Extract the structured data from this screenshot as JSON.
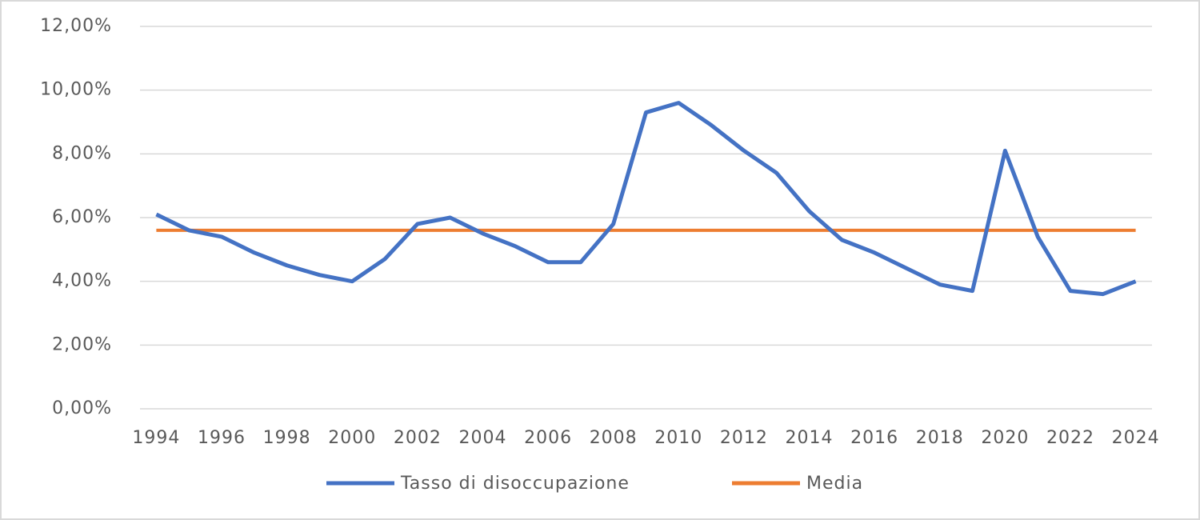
{
  "chart_data": {
    "type": "line",
    "categories": [
      "1994",
      null,
      "1996",
      null,
      "1998",
      null,
      "2000",
      null,
      "2002",
      null,
      "2004",
      null,
      "2006",
      null,
      "2008",
      null,
      "2010",
      null,
      "2012",
      null,
      "2014",
      null,
      "2016",
      null,
      "2018",
      null,
      "2020",
      null,
      "2022",
      null,
      "2024"
    ],
    "series": [
      {
        "name": "Tasso di disoccupazione",
        "color": "#4472c4",
        "values": [
          6.1,
          5.6,
          5.4,
          4.9,
          4.5,
          4.2,
          4.0,
          4.7,
          5.8,
          6.0,
          5.5,
          5.1,
          4.6,
          4.6,
          5.8,
          9.3,
          9.6,
          8.9,
          8.1,
          7.4,
          6.2,
          5.3,
          4.9,
          4.4,
          3.9,
          3.7,
          8.1,
          5.4,
          3.7,
          3.6,
          4.0
        ]
      },
      {
        "name": "Media",
        "color": "#ed7d31",
        "values": [
          5.6,
          5.6,
          5.6,
          5.6,
          5.6,
          5.6,
          5.6,
          5.6,
          5.6,
          5.6,
          5.6,
          5.6,
          5.6,
          5.6,
          5.6,
          5.6,
          5.6,
          5.6,
          5.6,
          5.6,
          5.6,
          5.6,
          5.6,
          5.6,
          5.6,
          5.6,
          5.6,
          5.6,
          5.6,
          5.6,
          5.6
        ]
      }
    ],
    "ylim": [
      0,
      12
    ],
    "yticks": [
      {
        "value": 0,
        "label": "0,00%"
      },
      {
        "value": 2,
        "label": "2,00%"
      },
      {
        "value": 4,
        "label": "4,00%"
      },
      {
        "value": 6,
        "label": "6,00%"
      },
      {
        "value": 8,
        "label": "8,00%"
      },
      {
        "value": 10,
        "label": "10,00%"
      },
      {
        "value": 12,
        "label": "12,00%"
      }
    ],
    "grid": true,
    "legend": "bottom"
  }
}
